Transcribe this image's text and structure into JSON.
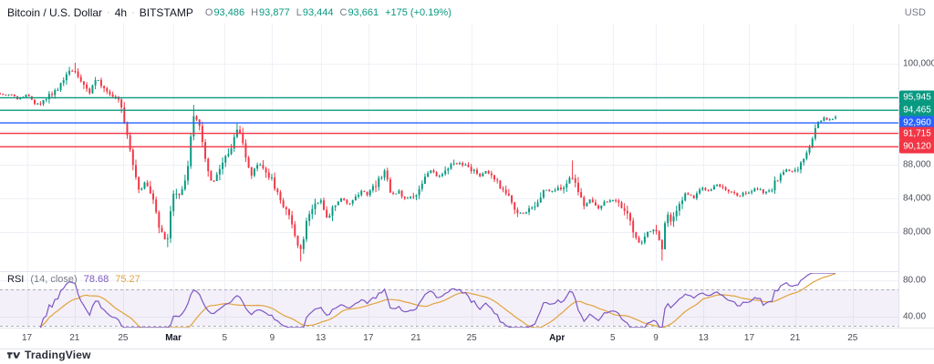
{
  "header": {
    "symbol": "Bitcoin / U.S. Dollar",
    "separator": "·",
    "interval": "4h",
    "exchange": "BITSTAMP",
    "ohlc": {
      "o_label": "O",
      "o": "93,486",
      "h_label": "H",
      "h": "93,877",
      "l_label": "L",
      "l": "93,444",
      "c_label": "C",
      "c": "93,661",
      "change": "+175 (+0.19%)"
    },
    "currency": "USD"
  },
  "colors": {
    "up": "#089981",
    "down": "#f23645",
    "grid": "#eef1f6",
    "axis_border": "#e0e3eb",
    "axis_text": "#4a4e59",
    "rsi_line": "#7e57c2",
    "rsi_ma": "#e2a33d",
    "rsi_fill": "rgba(126,87,194,0.09)",
    "rsi_band_line": "#a9adb8"
  },
  "chart_data": {
    "type": "candlestick",
    "title": "Bitcoin / U.S. Dollar · 4h · BITSTAMP",
    "ohlc_current": {
      "open": 93486,
      "high": 93877,
      "low": 93444,
      "close": 93661,
      "change": 175,
      "change_pct": 0.19
    },
    "ylim": [
      75350,
      104750
    ],
    "price_gridlines": [
      80000,
      84000,
      88000,
      92000,
      96000,
      100000
    ],
    "y_axis_labels": [
      {
        "value": 100000,
        "label": "100,000"
      },
      {
        "value": 88000,
        "label": "88,000"
      },
      {
        "value": 84000,
        "label": "84,000"
      },
      {
        "value": 80000,
        "label": "80,000"
      }
    ],
    "levels": [
      {
        "price": 95945,
        "label": "95,945",
        "color": "#089981"
      },
      {
        "price": 94465,
        "label": "94,465",
        "color": "#089981"
      },
      {
        "price": 92960,
        "label": "92,960",
        "color": "#2962ff"
      },
      {
        "price": 91715,
        "label": "91,715",
        "color": "#f23645"
      },
      {
        "price": 90120,
        "label": "90,120",
        "color": "#f23645"
      }
    ],
    "time_ticks": [
      {
        "f": 0.03,
        "label": "17"
      },
      {
        "f": 0.083,
        "label": "21"
      },
      {
        "f": 0.137,
        "label": "25"
      },
      {
        "f": 0.193,
        "label": "Mar",
        "month": true
      },
      {
        "f": 0.25,
        "label": "5"
      },
      {
        "f": 0.303,
        "label": "9"
      },
      {
        "f": 0.357,
        "label": "13"
      },
      {
        "f": 0.41,
        "label": "17"
      },
      {
        "f": 0.463,
        "label": "21"
      },
      {
        "f": 0.525,
        "label": "25"
      },
      {
        "f": 0.62,
        "label": "Apr",
        "month": true
      },
      {
        "f": 0.682,
        "label": "5"
      },
      {
        "f": 0.73,
        "label": "9"
      },
      {
        "f": 0.783,
        "label": "13"
      },
      {
        "f": 0.834,
        "label": "17"
      },
      {
        "f": 0.885,
        "label": "21"
      },
      {
        "f": 0.949,
        "label": "25"
      }
    ],
    "price_path": [
      [
        0.0,
        96500
      ],
      [
        0.01,
        96300
      ],
      [
        0.02,
        95800
      ],
      [
        0.03,
        96200
      ],
      [
        0.04,
        95100
      ],
      [
        0.05,
        95600
      ],
      [
        0.06,
        96800
      ],
      [
        0.07,
        97600
      ],
      [
        0.078,
        99300
      ],
      [
        0.085,
        99100
      ],
      [
        0.092,
        97600
      ],
      [
        0.1,
        96500
      ],
      [
        0.108,
        98200
      ],
      [
        0.115,
        97300
      ],
      [
        0.125,
        96300
      ],
      [
        0.133,
        95900
      ],
      [
        0.14,
        92500
      ],
      [
        0.148,
        88000
      ],
      [
        0.155,
        84500
      ],
      [
        0.162,
        86300
      ],
      [
        0.17,
        84000
      ],
      [
        0.178,
        80000
      ],
      [
        0.186,
        78900
      ],
      [
        0.193,
        84800
      ],
      [
        0.2,
        84300
      ],
      [
        0.208,
        86500
      ],
      [
        0.215,
        94000
      ],
      [
        0.222,
        92800
      ],
      [
        0.23,
        87800
      ],
      [
        0.237,
        85800
      ],
      [
        0.244,
        87300
      ],
      [
        0.25,
        88800
      ],
      [
        0.258,
        90200
      ],
      [
        0.265,
        92500
      ],
      [
        0.272,
        89500
      ],
      [
        0.28,
        86800
      ],
      [
        0.288,
        88300
      ],
      [
        0.296,
        87000
      ],
      [
        0.303,
        86200
      ],
      [
        0.312,
        83600
      ],
      [
        0.32,
        82500
      ],
      [
        0.328,
        79500
      ],
      [
        0.335,
        77900
      ],
      [
        0.342,
        81500
      ],
      [
        0.35,
        83300
      ],
      [
        0.357,
        83800
      ],
      [
        0.365,
        81600
      ],
      [
        0.372,
        83200
      ],
      [
        0.38,
        84100
      ],
      [
        0.388,
        83300
      ],
      [
        0.395,
        84000
      ],
      [
        0.403,
        84900
      ],
      [
        0.41,
        84400
      ],
      [
        0.42,
        85900
      ],
      [
        0.428,
        87000
      ],
      [
        0.436,
        84300
      ],
      [
        0.444,
        84800
      ],
      [
        0.452,
        83900
      ],
      [
        0.463,
        84300
      ],
      [
        0.472,
        86500
      ],
      [
        0.48,
        87300
      ],
      [
        0.488,
        86400
      ],
      [
        0.496,
        87400
      ],
      [
        0.505,
        88200
      ],
      [
        0.515,
        88000
      ],
      [
        0.525,
        87500
      ],
      [
        0.533,
        86600
      ],
      [
        0.541,
        87300
      ],
      [
        0.549,
        86500
      ],
      [
        0.557,
        85400
      ],
      [
        0.565,
        84300
      ],
      [
        0.573,
        82700
      ],
      [
        0.581,
        82100
      ],
      [
        0.589,
        82600
      ],
      [
        0.597,
        83400
      ],
      [
        0.605,
        85000
      ],
      [
        0.613,
        84700
      ],
      [
        0.62,
        85100
      ],
      [
        0.628,
        85500
      ],
      [
        0.636,
        86900
      ],
      [
        0.643,
        85200
      ],
      [
        0.65,
        83200
      ],
      [
        0.658,
        83900
      ],
      [
        0.666,
        82800
      ],
      [
        0.674,
        83500
      ],
      [
        0.682,
        83900
      ],
      [
        0.69,
        83300
      ],
      [
        0.698,
        82100
      ],
      [
        0.706,
        79800
      ],
      [
        0.713,
        78400
      ],
      [
        0.72,
        79900
      ],
      [
        0.727,
        80500
      ],
      [
        0.733,
        79300
      ],
      [
        0.738,
        77600
      ],
      [
        0.741,
        82100
      ],
      [
        0.748,
        81300
      ],
      [
        0.756,
        83400
      ],
      [
        0.764,
        84600
      ],
      [
        0.772,
        84100
      ],
      [
        0.783,
        85200
      ],
      [
        0.79,
        84800
      ],
      [
        0.798,
        85600
      ],
      [
        0.806,
        85200
      ],
      [
        0.814,
        84700
      ],
      [
        0.822,
        84300
      ],
      [
        0.834,
        84800
      ],
      [
        0.842,
        85300
      ],
      [
        0.85,
        84600
      ],
      [
        0.858,
        85100
      ],
      [
        0.866,
        86300
      ],
      [
        0.874,
        87400
      ],
      [
        0.885,
        87200
      ],
      [
        0.893,
        88400
      ],
      [
        0.901,
        90300
      ],
      [
        0.909,
        92800
      ],
      [
        0.917,
        93500
      ],
      [
        0.925,
        93300
      ],
      [
        0.93,
        93661
      ]
    ],
    "wick_events": [
      {
        "f": 0.085,
        "price": 100100
      },
      {
        "f": 0.186,
        "price": 78200
      },
      {
        "f": 0.215,
        "price": 95100
      },
      {
        "f": 0.265,
        "price": 92900
      },
      {
        "f": 0.335,
        "price": 76500
      },
      {
        "f": 0.428,
        "price": 87500
      },
      {
        "f": 0.505,
        "price": 88600
      },
      {
        "f": 0.636,
        "price": 88500
      },
      {
        "f": 0.738,
        "price": 76600
      },
      {
        "f": 0.93,
        "price": 93877
      },
      {
        "f": 0.93,
        "price": 93444
      }
    ],
    "num_candles": 290,
    "last_f": 0.93
  },
  "rsi": {
    "title": "RSI",
    "params": "(14, close)",
    "value": "78.68",
    "ma_value": "75.27",
    "length": 14,
    "ma_length": 14,
    "ylim": [
      28,
      88
    ],
    "bands": [
      70,
      30
    ],
    "axis_labels": [
      {
        "value": 80,
        "label": "80.00"
      },
      {
        "value": 40,
        "label": "40.00"
      }
    ]
  },
  "footer": {
    "brand": "TradingView"
  }
}
